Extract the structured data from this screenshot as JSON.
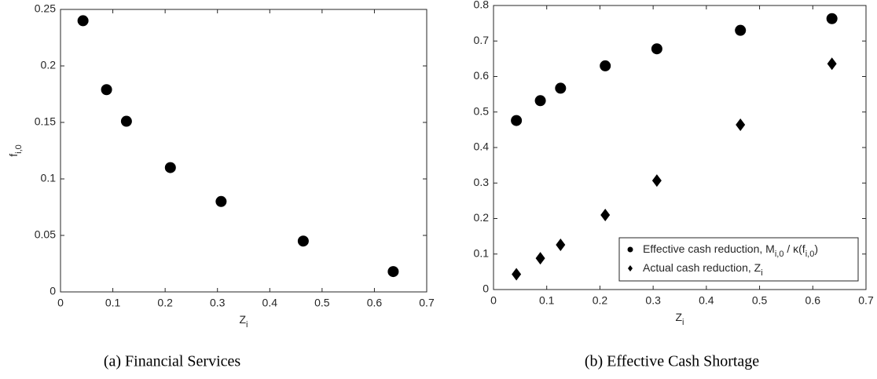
{
  "chart_data": [
    {
      "type": "scatter",
      "caption": "(a) Financial Services",
      "xlabel": [
        {
          "text": "Z"
        },
        {
          "text": "i",
          "sub": true
        }
      ],
      "ylabel": [
        {
          "text": "f"
        },
        {
          "text": "i,0",
          "sub": true
        }
      ],
      "xlim": [
        0,
        0.7
      ],
      "xticks": [
        0,
        0.1,
        0.2,
        0.3,
        0.4,
        0.5,
        0.6,
        0.7
      ],
      "ylim": [
        0,
        0.25
      ],
      "yticks": [
        0,
        0.05,
        0.1,
        0.15,
        0.2,
        0.25
      ],
      "series": [
        {
          "marker": "circle",
          "color": "#000000",
          "x": [
            0.043,
            0.088,
            0.126,
            0.21,
            0.307,
            0.464,
            0.636
          ],
          "values": [
            0.24,
            0.179,
            0.151,
            0.11,
            0.08,
            0.045,
            0.018
          ]
        }
      ]
    },
    {
      "type": "scatter",
      "caption": "(b) Effective Cash Shortage",
      "xlabel": [
        {
          "text": "Z"
        },
        {
          "text": "i",
          "sub": true
        }
      ],
      "xlim": [
        0,
        0.7
      ],
      "xticks": [
        0,
        0.1,
        0.2,
        0.3,
        0.4,
        0.5,
        0.6,
        0.7
      ],
      "ylim": [
        0,
        0.8
      ],
      "yticks": [
        0,
        0.1,
        0.2,
        0.3,
        0.4,
        0.5,
        0.6,
        0.7,
        0.8
      ],
      "legend": "lower right",
      "series": [
        {
          "name": [
            {
              "text": "Effective cash reduction, M"
            },
            {
              "text": "i,0",
              "sub": true
            },
            {
              "text": " / κ(f"
            },
            {
              "text": "i,0",
              "sub": true
            },
            {
              "text": ")"
            }
          ],
          "marker": "circle",
          "color": "#000000",
          "x": [
            0.043,
            0.088,
            0.126,
            0.21,
            0.307,
            0.464,
            0.636
          ],
          "values": [
            0.476,
            0.532,
            0.567,
            0.63,
            0.678,
            0.73,
            0.763
          ]
        },
        {
          "name": [
            {
              "text": "Actual cash reduction, Z"
            },
            {
              "text": "i",
              "sub": true
            }
          ],
          "marker": "diamond",
          "color": "#000000",
          "x": [
            0.043,
            0.088,
            0.126,
            0.21,
            0.307,
            0.464,
            0.636
          ],
          "values": [
            0.043,
            0.088,
            0.126,
            0.21,
            0.307,
            0.464,
            0.636
          ]
        }
      ]
    }
  ]
}
